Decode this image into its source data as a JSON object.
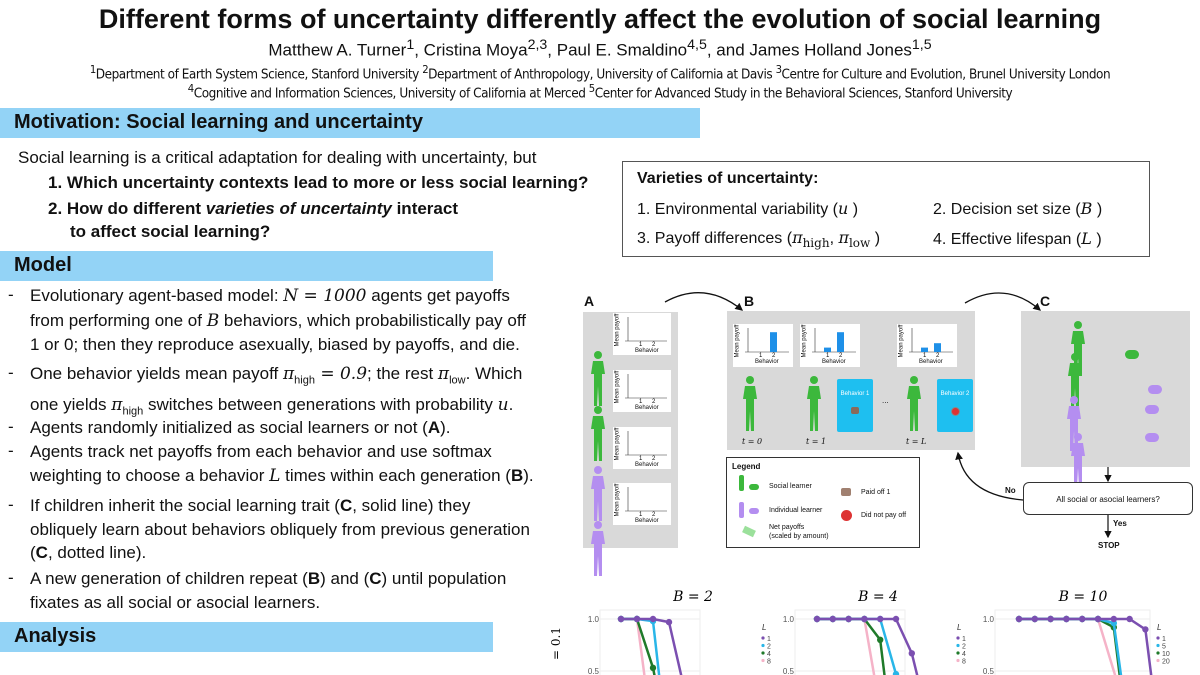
{
  "header": {
    "title": "Different forms of uncertainty differently affect the evolution of social learning",
    "authors": [
      {
        "name": "Matthew A. Turner",
        "sup": "1"
      },
      {
        "name": "Cristina Moya",
        "sup": "2,3"
      },
      {
        "name": "Paul E. Smaldino",
        "sup": "4,5"
      },
      {
        "name": "James Holland Jones",
        "sup": "1,5"
      }
    ],
    "and": "and",
    "affiliations_line1": [
      {
        "sup": "1",
        "text": "Department of Earth System Science, Stanford University"
      },
      {
        "sup": "2",
        "text": "Department of Anthropology, University of California at Davis"
      },
      {
        "sup": "3",
        "text": "Centre for Culture and Evolution, Brunel University London"
      }
    ],
    "affiliations_line2": [
      {
        "sup": "4",
        "text": "Cognitive and Information Sciences, University of California at Merced"
      },
      {
        "sup": "5",
        "text": "Center for Advanced Study in the Behavioral Sciences, Stanford University"
      }
    ]
  },
  "motivation": {
    "heading": "Motivation: Social learning and uncertainty",
    "intro": "Social learning is a critical adaptation for dealing with uncertainty, but",
    "q1": "1. Which uncertainty contexts lead to more or less social learning?",
    "q2a": "2. How do different ",
    "q2b": "varieties of uncertainty",
    "q2c": " interact",
    "q2d": "to affect social learning?"
  },
  "varieties": {
    "heading": "Varieties of uncertainty:",
    "i1": "1. Environmental variability (",
    "i1s": "u",
    "i1e": ")",
    "i2": "2.  Decision set size (",
    "i2s": "B",
    "i2e": ")",
    "i3": "3. Payoff differences (",
    "i3s": "π",
    "i3sub": "high",
    "i3m": ", ",
    "i3s2": "π",
    "i3sub2": "low",
    "i3e": " )",
    "i4": "4.  Effective lifespan (",
    "i4s": "L",
    "i4e": ")"
  },
  "model": {
    "heading": "Model",
    "bullet": "-",
    "b1": [
      "Evolutionary agent-based model: ",
      "N = 1000",
      " agents get payoffs",
      "from performing one of ",
      "B",
      " behaviors, which probabilistically pay off",
      "1 or 0; then they reproduce asexually, biased by payoffs, and die."
    ],
    "b2": [
      "One behavior yields mean payoff ",
      "π",
      "high",
      " = 0.9",
      "; the rest ",
      "π",
      "low",
      ". Which",
      "one yields ",
      "π",
      "high",
      " switches between generations with probability ",
      "u",
      "."
    ],
    "b3": [
      "Agents randomly initialized as social learners or not (",
      "A",
      ")."
    ],
    "b4": [
      "Agents track net payoffs from each behavior and use softmax",
      "weighting to choose a behavior ",
      "L",
      " times within each generation (",
      "B",
      ")."
    ],
    "b5": [
      "If children inherit the social learning trait (",
      "C",
      ", solid line) they",
      "obliquely learn about behaviors obliquely from previous generation",
      "(",
      "C",
      ", dotted line)."
    ],
    "b6": [
      "A new generation of children repeat (",
      "B",
      ") and (",
      "C",
      ")  until population",
      "fixates as all social or asocial learners."
    ]
  },
  "analysis": {
    "heading": "Analysis"
  },
  "figure": {
    "panel_labels": [
      "A",
      "B",
      "C"
    ],
    "mini_ylabel": "Mean payoff",
    "mini_xlabel": "Behavior",
    "mini_ticks": [
      "1",
      "2"
    ],
    "time_labels": [
      "t = 0",
      "t = 1",
      "t = L"
    ],
    "ellipsis": "...",
    "behavior_boxes": [
      "Behavior 1",
      "Behavior 2"
    ],
    "legend": {
      "title": "Legend",
      "social": "Social learner",
      "individual": "Individual learner",
      "net1": "Net payoffs",
      "net2": "(scaled by amount)",
      "paid": "Paid off 1",
      "notpaid": "Did not pay off"
    },
    "decision": "All social or asocial learners?",
    "no": "No",
    "yes": "Yes",
    "stop": "STOP",
    "colors": {
      "social": "#3cb83c",
      "individual": "#b48ef0",
      "bar": "#1e90e8",
      "box": "#1ebff0",
      "panel": "#d9d9d9"
    }
  },
  "chart_data": [
    {
      "type": "line",
      "title": "B = 2",
      "ylabel_partial": "= 0.1",
      "yticks": [
        "1.0",
        "0.5"
      ],
      "legend_title": "L",
      "ylim": [
        0.3,
        1.0
      ],
      "series": [
        {
          "name": "1",
          "color": "#7b4fb0",
          "x": [
            0,
            1,
            2,
            3,
            4
          ],
          "y": [
            1,
            1,
            1,
            0.97,
            0.3
          ]
        },
        {
          "name": "2",
          "color": "#29b6e8",
          "x": [
            0,
            1,
            2,
            2.5
          ],
          "y": [
            1,
            1,
            0.98,
            0.3
          ]
        },
        {
          "name": "4",
          "color": "#1f7a2a",
          "x": [
            0,
            1,
            2,
            2.3
          ],
          "y": [
            1,
            1,
            0.53,
            0.3
          ]
        },
        {
          "name": "8",
          "color": "#f5b3c8",
          "x": [
            0,
            1,
            1.6
          ],
          "y": [
            1,
            1,
            0.3
          ]
        }
      ]
    },
    {
      "type": "line",
      "title": "B = 4",
      "yticks": [
        "1.0",
        "0.5"
      ],
      "legend_title": "L",
      "ylim": [
        0.3,
        1.0
      ],
      "series": [
        {
          "name": "1",
          "color": "#7b4fb0",
          "x": [
            0,
            1,
            2,
            3,
            4,
            5,
            6,
            6.6
          ],
          "y": [
            1,
            1,
            1,
            1,
            1,
            1,
            0.67,
            0.3
          ]
        },
        {
          "name": "2",
          "color": "#29b6e8",
          "x": [
            0,
            1,
            2,
            3,
            4,
            5,
            5.3
          ],
          "y": [
            1,
            1,
            1,
            1,
            1,
            0.47,
            0.3
          ]
        },
        {
          "name": "4",
          "color": "#1f7a2a",
          "x": [
            0,
            1,
            2,
            3,
            4,
            4.4
          ],
          "y": [
            1,
            1,
            1,
            1,
            0.8,
            0.3
          ]
        },
        {
          "name": "8",
          "color": "#f5b3c8",
          "x": [
            0,
            1,
            2,
            3,
            3.8
          ],
          "y": [
            1,
            1,
            1,
            1,
            0.3
          ]
        }
      ]
    },
    {
      "type": "line",
      "title": "B = 10",
      "yticks": [
        "1.0",
        "0.5"
      ],
      "legend_title": "L",
      "ylim": [
        0.3,
        1.0
      ],
      "series": [
        {
          "name": "1",
          "color": "#7b4fb0",
          "x": [
            0,
            1,
            2,
            3,
            4,
            5,
            6,
            7,
            8,
            8.5
          ],
          "y": [
            1,
            1,
            1,
            1,
            1,
            1,
            1,
            1,
            0.9,
            0.3
          ]
        },
        {
          "name": "5",
          "color": "#29b6e8",
          "x": [
            0,
            1,
            2,
            3,
            4,
            5,
            6,
            6.6
          ],
          "y": [
            1,
            1,
            1,
            1,
            1,
            1,
            0.96,
            0.3
          ]
        },
        {
          "name": "10",
          "color": "#1f7a2a",
          "x": [
            0,
            1,
            2,
            3,
            4,
            5,
            6,
            6.5
          ],
          "y": [
            1,
            1,
            1,
            1,
            1,
            1,
            0.92,
            0.3
          ]
        },
        {
          "name": "20",
          "color": "#f5b3c8",
          "x": [
            0,
            1,
            2,
            3,
            4,
            5,
            6.4
          ],
          "y": [
            1,
            1,
            1,
            1,
            1,
            1,
            0.3
          ]
        }
      ]
    }
  ]
}
